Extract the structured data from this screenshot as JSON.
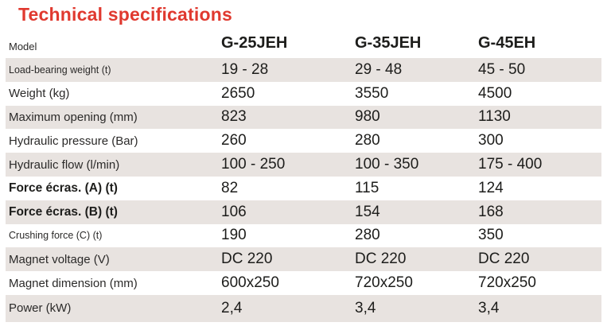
{
  "title": "Technical specifications",
  "colors": {
    "accent_red": "#e0392f",
    "row_shade": "#e8e3e0",
    "text_dark": "#1d1d1b",
    "background": "#ffffff"
  },
  "table": {
    "header": {
      "label": "Model",
      "models": [
        "G-25JEH",
        "G-35JEH",
        "G-45EH"
      ]
    },
    "rows": [
      {
        "label": "Load-bearing weight (t)",
        "values": [
          "19 - 28",
          "29 - 48",
          "45 - 50"
        ]
      },
      {
        "label": "Weight (kg)",
        "values": [
          "2650",
          "3550",
          "4500"
        ]
      },
      {
        "label": "Maximum opening (mm)",
        "values": [
          "823",
          "980",
          "1130"
        ]
      },
      {
        "label": "Hydraulic pressure (Bar)",
        "values": [
          "260",
          "280",
          "300"
        ]
      },
      {
        "label": "Hydraulic flow (l/min)",
        "values": [
          "100 - 250",
          "100 - 350",
          "175 - 400"
        ]
      },
      {
        "label": "Force écras. (A) (t)",
        "values": [
          "82",
          "115",
          "124"
        ]
      },
      {
        "label": "Force écras. (B) (t)",
        "values": [
          "106",
          "154",
          "168"
        ]
      },
      {
        "label": "Crushing force (C) (t)",
        "values": [
          "190",
          "280",
          "350"
        ]
      },
      {
        "label": "Magnet voltage (V)",
        "values": [
          "DC 220",
          "DC 220",
          "DC 220"
        ]
      },
      {
        "label": "Magnet dimension (mm)",
        "values": [
          "600x250",
          "720x250",
          "720x250"
        ]
      },
      {
        "label": "Power (kW)",
        "values": [
          "2,4",
          "3,4",
          "3,4"
        ]
      }
    ]
  }
}
